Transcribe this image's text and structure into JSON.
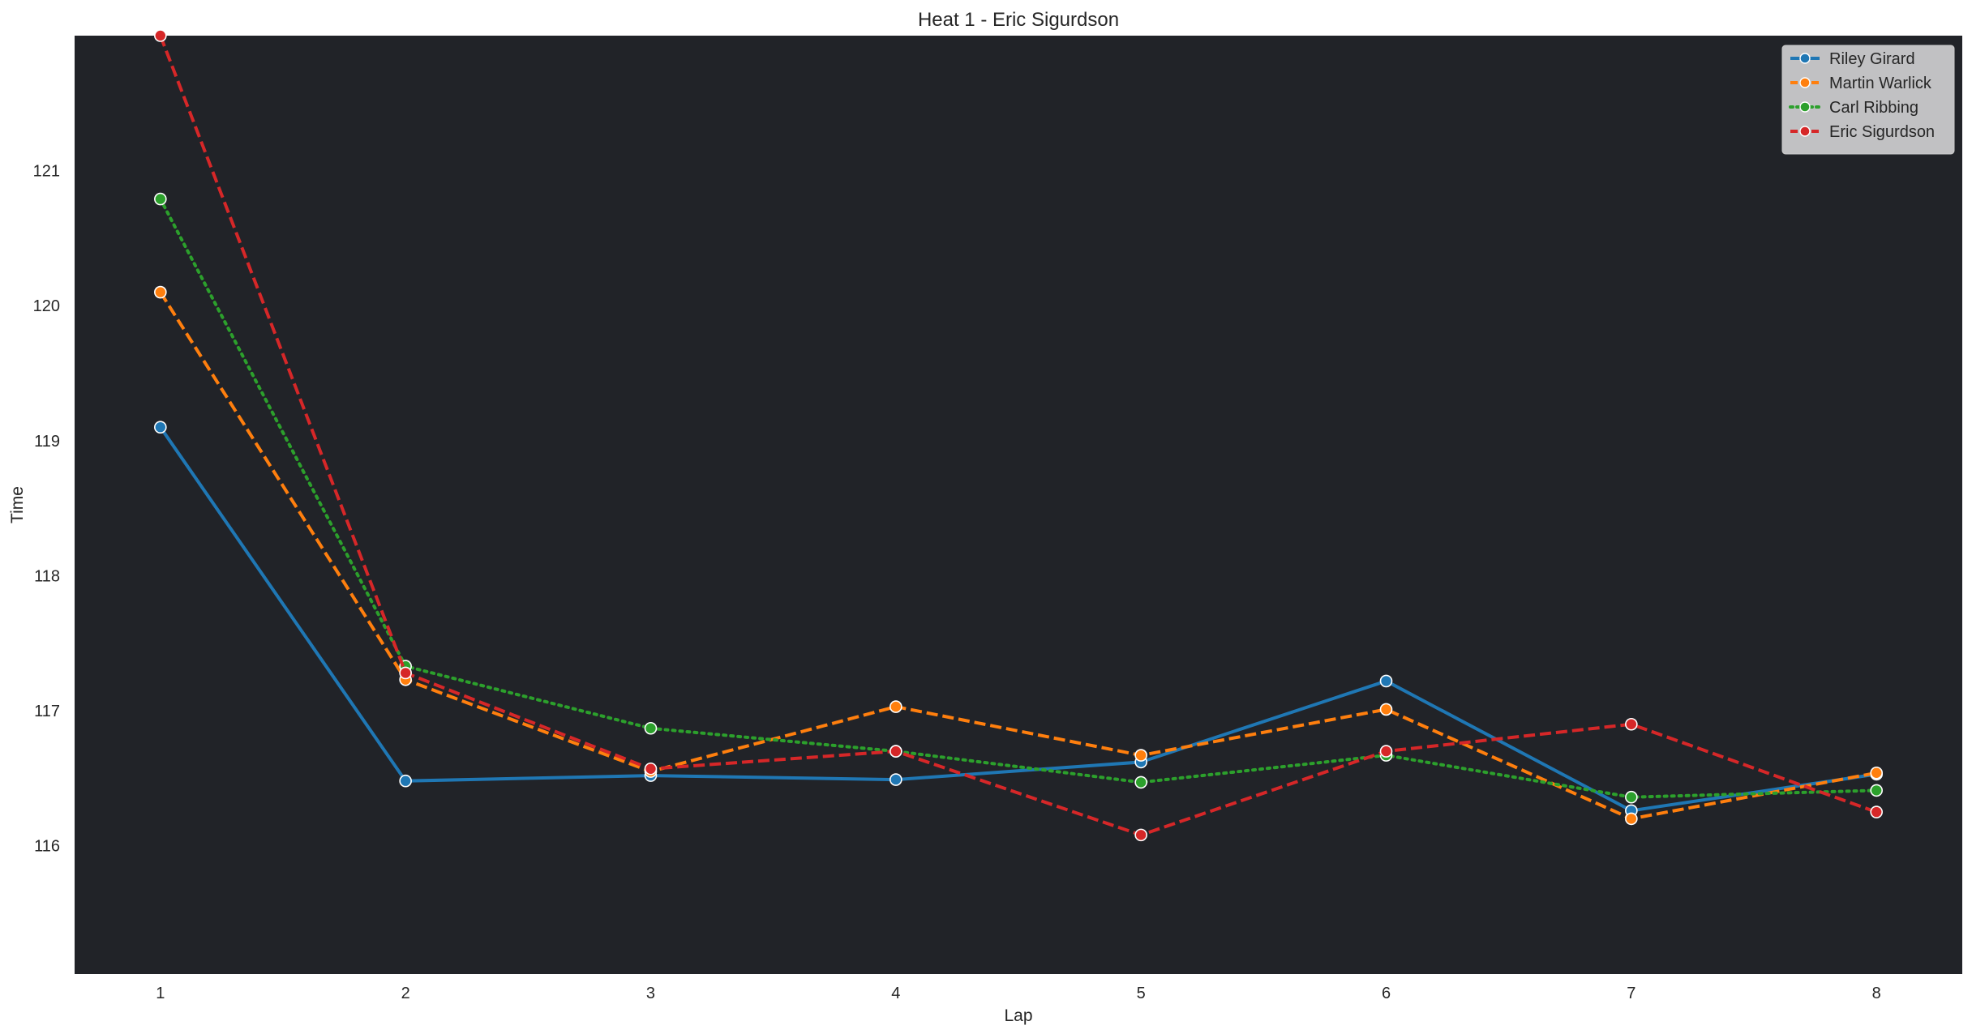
{
  "chart_data": {
    "type": "line",
    "title": "Heat 1 - Eric Sigurdson",
    "xlabel": "Lap",
    "ylabel": "Time",
    "x": [
      1,
      2,
      3,
      4,
      5,
      6,
      7,
      8
    ],
    "xlim": [
      0.65,
      8.35
    ],
    "ylim": [
      115.05,
      122.0
    ],
    "yticks": [
      116,
      117,
      118,
      119,
      120,
      121
    ],
    "grid": false,
    "legend_position": "top-right",
    "plot_background": "#212328",
    "series": [
      {
        "name": "Riley Girard",
        "color": "#1f77b4",
        "dash": "solid",
        "values": [
          119.1,
          116.48,
          116.52,
          116.49,
          116.62,
          117.22,
          116.26,
          116.53
        ]
      },
      {
        "name": "Martin Warlick",
        "color": "#ff7f0e",
        "dash": "dashed",
        "values": [
          120.1,
          117.23,
          116.55,
          117.03,
          116.67,
          117.01,
          116.2,
          116.54
        ]
      },
      {
        "name": "Carl Ribbing",
        "color": "#2ca02c",
        "dash": "dotted",
        "values": [
          120.79,
          117.33,
          116.87,
          116.7,
          116.47,
          116.67,
          116.36,
          116.41
        ]
      },
      {
        "name": "Eric Sigurdson",
        "color": "#d62728",
        "dash": "dashed",
        "values": [
          122.0,
          117.28,
          116.57,
          116.7,
          116.08,
          116.7,
          116.9,
          116.25
        ]
      }
    ]
  }
}
